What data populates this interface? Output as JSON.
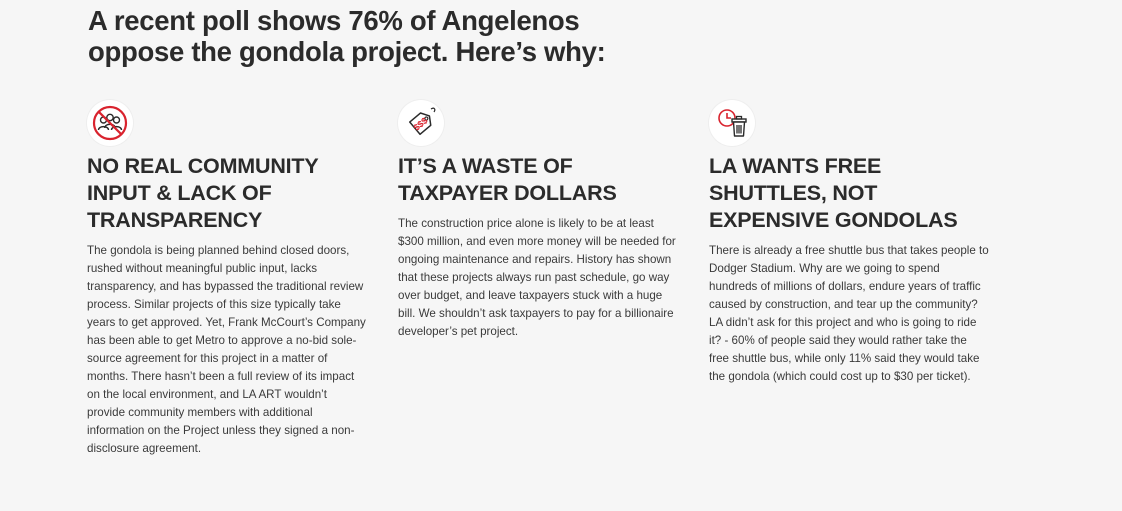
{
  "headline": "A recent poll shows 76% of Angelenos oppose the gondola project. Here’s why:",
  "accent_color": "#d9232e",
  "columns": [
    {
      "icon": "no-community-icon",
      "title": "NO REAL COMMUNITY INPUT & LACK OF TRANSPARENCY",
      "body": "The gondola is being planned behind closed doors, rushed without meaningful public input, lacks transparency, and has bypassed the traditional review process. Similar projects of this size typically take years to get approved. Yet, Frank McCourt’s Company has been able to get Metro to approve a no-bid sole-source agreement for this project in a matter of months. There hasn’t been a full review of its impact on the local environment, and LA ART wouldn’t provide community members with additional information on the Project unless they signed a non-disclosure agreement."
    },
    {
      "icon": "price-tag-icon",
      "title": "IT’S A WASTE OF TAXPAYER DOLLARS",
      "body": "The construction price alone is likely to be at least $300 million, and even more money will be needed for ongoing maintenance and repairs. History has shown that these projects always run past schedule, go way over budget, and leave taxpayers stuck with a huge bill. We shouldn’t ask taxpayers to pay for a billionaire developer’s pet project."
    },
    {
      "icon": "clock-trash-icon",
      "title": "LA WANTS FREE SHUTTLES, NOT EXPENSIVE GONDOLAS",
      "body": "There is already a free shuttle bus that takes people to Dodger Stadium. Why are we going to spend hundreds of millions of dollars, endure years of traffic caused by construction, and tear up the community? LA didn’t ask for this project and who is going to ride it? - 60% of people said they would rather take the free shuttle bus, while only 11% said they would take the gondola (which could cost up to $30 per ticket)."
    }
  ]
}
